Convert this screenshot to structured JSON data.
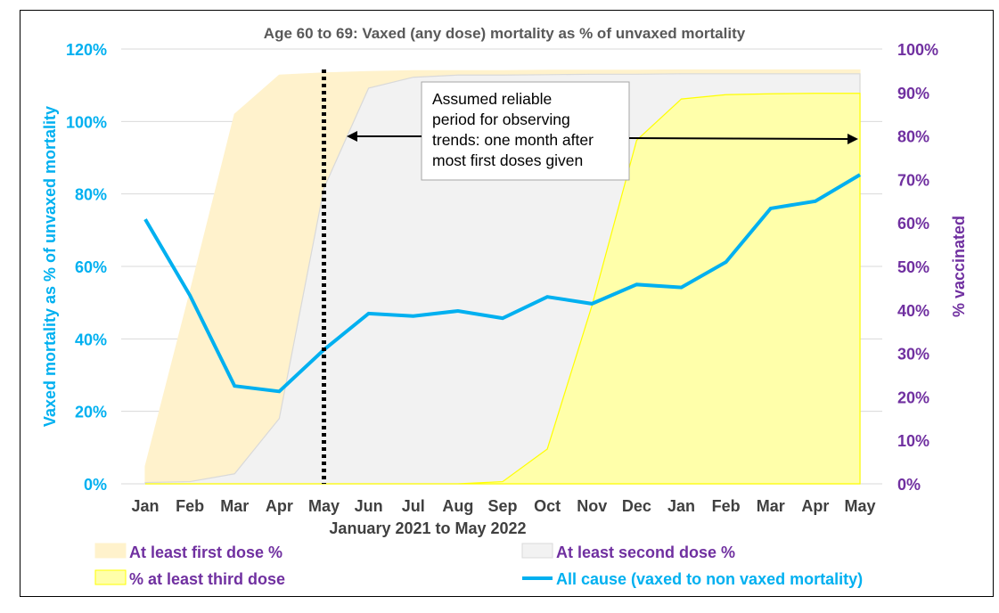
{
  "chart_data": {
    "type": "area+line",
    "title": "Age 60 to 69: Vaxed (any dose) mortality as % of unvaxed mortality",
    "xlabel": "January 2021 to May 2022",
    "ylabel_left": "Vaxed mortality as % of unvaxed mortality",
    "ylabel_right": "% vaccinated",
    "categories": [
      "Jan",
      "Feb",
      "Mar",
      "Apr",
      "May",
      "Jun",
      "Jul",
      "Aug",
      "Sep",
      "Oct",
      "Nov",
      "Dec",
      "Jan",
      "Feb",
      "Mar",
      "Apr",
      "May"
    ],
    "ylim_left": [
      0,
      120
    ],
    "yticks_left": [
      "0%",
      "20%",
      "40%",
      "60%",
      "80%",
      "100%",
      "120%"
    ],
    "ylim_right": [
      0,
      100
    ],
    "yticks_right": [
      "0%",
      "10%",
      "20%",
      "30%",
      "40%",
      "50%",
      "60%",
      "70%",
      "80%",
      "90%",
      "100%"
    ],
    "grid": true,
    "legend_position": "bottom",
    "series": [
      {
        "name": "At least first dose %",
        "type": "area",
        "axis": "right",
        "color": "#fff2cc",
        "values": [
          4,
          44,
          85,
          94,
          94.5,
          94.8,
          95,
          95,
          95,
          95.1,
          95.1,
          95.1,
          95.2,
          95.2,
          95.2,
          95.2,
          95.2
        ]
      },
      {
        "name": "At least second dose %",
        "type": "area",
        "axis": "right",
        "color": "#f2f2f2",
        "values": [
          0.3,
          0.5,
          2.3,
          15,
          68,
          91,
          93.5,
          94,
          94,
          94.1,
          94.2,
          94.2,
          94.3,
          94.3,
          94.3,
          94.3,
          94.3
        ]
      },
      {
        "name": "% at least third dose",
        "type": "area",
        "axis": "right",
        "color": "#ffffaa",
        "values": [
          0,
          0,
          0,
          0,
          0,
          0,
          0,
          0,
          0.5,
          8,
          41,
          79,
          88.5,
          89.5,
          89.7,
          89.8,
          89.8
        ]
      },
      {
        "name": "All cause (vaxed to non vaxed mortality)",
        "type": "line",
        "axis": "left",
        "color": "#00b0f0",
        "values": [
          73,
          52,
          27,
          25.5,
          37,
          47,
          46.3,
          47.7,
          45.7,
          51.6,
          49.7,
          55,
          54.2,
          61.2,
          76,
          78,
          85.3
        ]
      }
    ],
    "annotations": [
      {
        "text": "Assumed reliable period for observing trends: one month after most first doses given",
        "lines": [
          "Assumed reliable",
          "period for observing",
          "trends: one month after",
          "most first doses given"
        ],
        "marker": "dotted vertical line at May (first year)",
        "arrow_span": [
          "May",
          "May (2022)"
        ]
      }
    ]
  },
  "legend": [
    {
      "label": "At least first dose %",
      "color": "#fff2cc",
      "text_color": "#7030a0",
      "kind": "area"
    },
    {
      "label": "At least second dose %",
      "color": "#f2f2f2",
      "text_color": "#7030a0",
      "kind": "area"
    },
    {
      "label": "% at least third dose",
      "color": "#ffffaa",
      "text_color": "#7030a0",
      "kind": "area"
    },
    {
      "label": "All cause (vaxed to non vaxed mortality)",
      "color": "#00b0f0",
      "text_color": "#00b0f0",
      "kind": "line"
    }
  ]
}
